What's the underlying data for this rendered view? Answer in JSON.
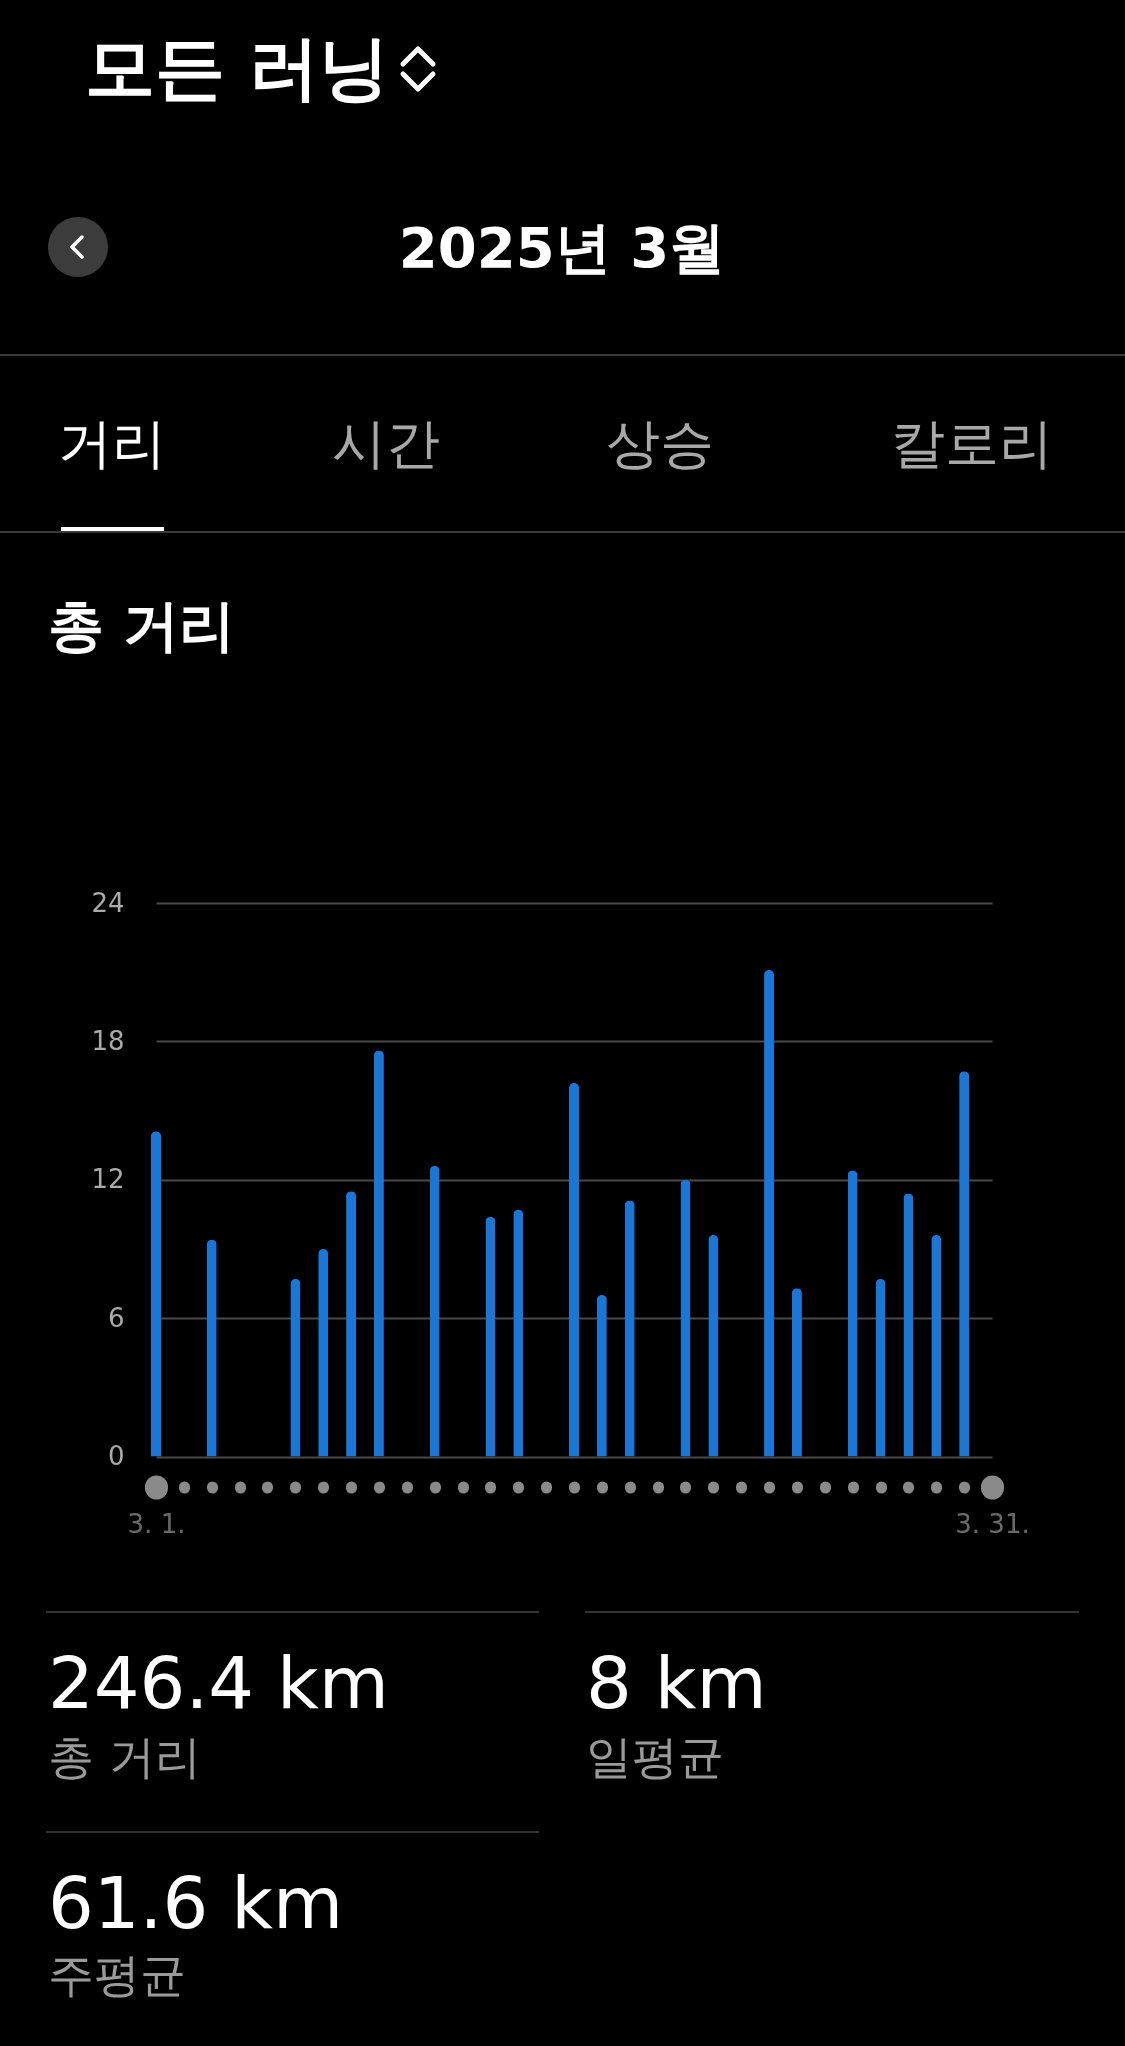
{
  "chart_data": {
    "type": "bar",
    "title": "모든 러닝",
    "subtitle": "2025년 3월",
    "categories": [
      "3. 1.",
      null,
      null,
      null,
      null,
      null,
      null,
      null,
      null,
      null,
      null,
      null,
      null,
      null,
      null,
      null,
      null,
      null,
      null,
      null,
      null,
      null,
      null,
      null,
      null,
      null,
      null,
      null,
      null,
      null,
      "3. 31."
    ],
    "values": [
      14.1,
      null,
      9.4,
      null,
      null,
      7.7,
      9.0,
      11.5,
      17.6,
      null,
      12.6,
      null,
      10.4,
      10.7,
      null,
      16.2,
      7.0,
      11.1,
      null,
      12.0,
      9.6,
      null,
      21.1,
      7.3,
      null,
      12.4,
      7.7,
      11.4,
      9.6,
      16.7,
      null
    ],
    "color": "#1b77d6",
    "ylim": [
      0,
      24
    ],
    "yticks": [
      0,
      6,
      12,
      18,
      24
    ],
    "grid": "y",
    "annotations": [
      "거리",
      "시간",
      "상승",
      "칼로리",
      "총 거리",
      "246.4 km",
      "총 거리",
      "8 km",
      "일평균",
      "61.6 km",
      "주평균"
    ]
  }
}
